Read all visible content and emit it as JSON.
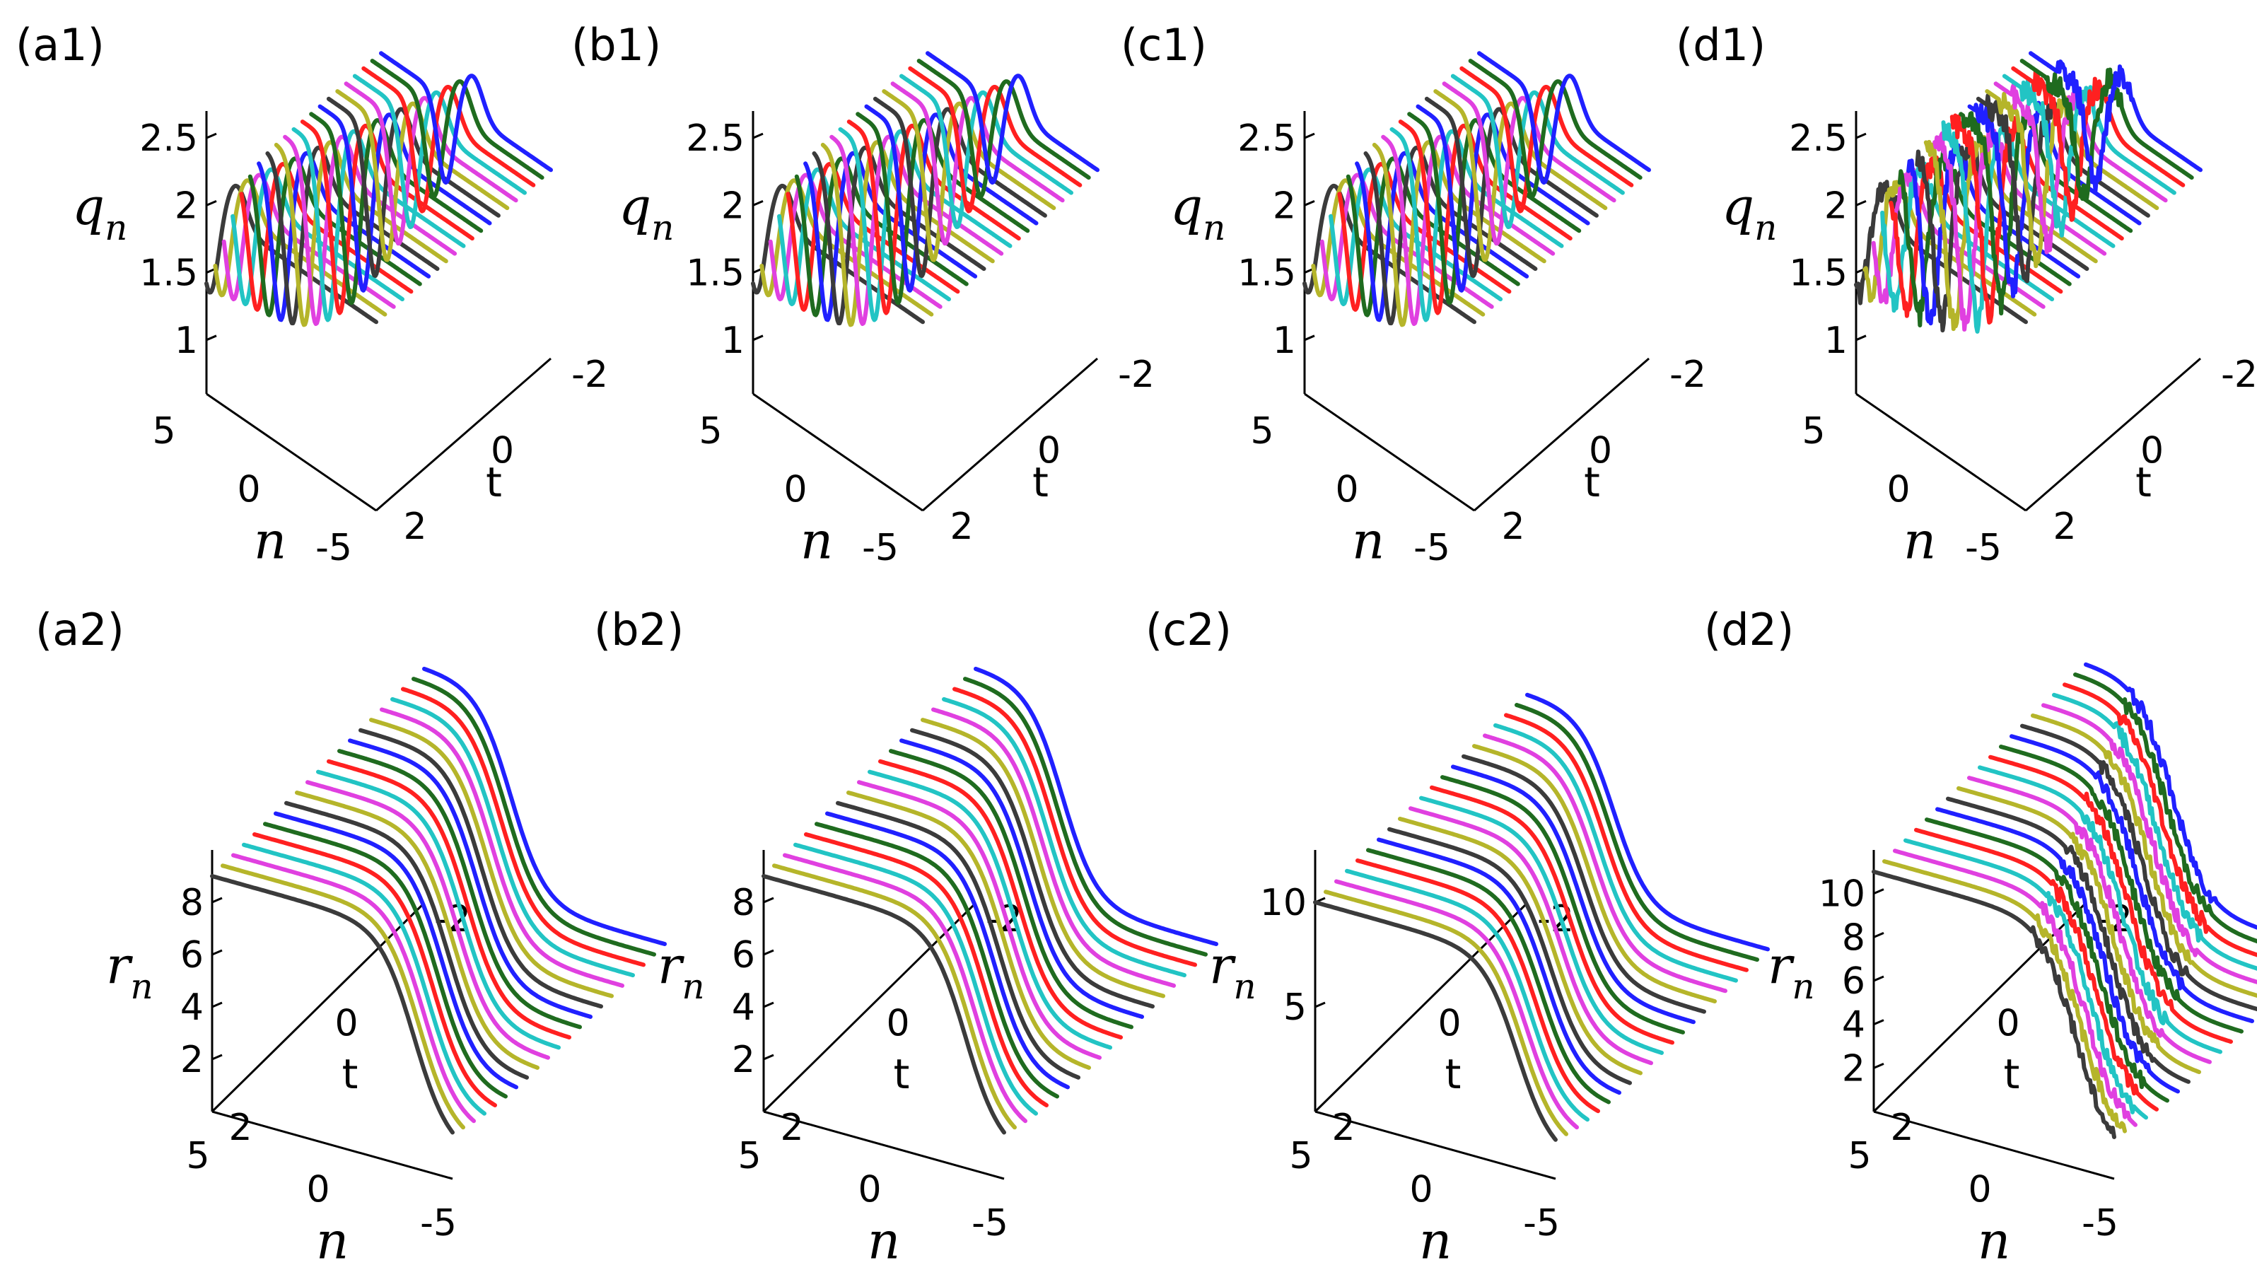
{
  "colors": [
    "#3b3b3b",
    "#b5b52a",
    "#e040e0",
    "#22c4c4",
    "#ff2020",
    "#1f6b1f",
    "#2020ff"
  ],
  "chart_data": [
    {
      "id": "a1",
      "label": "(a1)",
      "type": "line",
      "zlabel": "q",
      "zlabel_sub": "n",
      "xlabel": "n",
      "ylabel": "t",
      "ztick_labels": [
        "1",
        "1.5",
        "2",
        "2.5"
      ],
      "xtick_labels": [
        "-5",
        "0",
        "5"
      ],
      "ytick_labels": [
        "-2",
        "0",
        "2"
      ],
      "n_range": [
        -5,
        5
      ],
      "t_range": [
        -2,
        2
      ],
      "t_values": [
        2.0,
        1.8,
        1.6,
        1.4,
        1.2,
        1.0,
        0.8,
        0.6,
        0.4,
        0.2,
        0.0,
        -0.2,
        -0.4,
        -0.6,
        -0.8,
        -1.0,
        -1.2,
        -1.4,
        -1.6,
        -1.8,
        -2.0
      ],
      "baseline": 2,
      "feature": "dip",
      "min_value": 0.75,
      "peak_value": 2.3,
      "noise": 0
    },
    {
      "id": "b1",
      "label": "(b1)",
      "type": "line",
      "zlabel": "q",
      "zlabel_sub": "n",
      "xlabel": "n",
      "ylabel": "t",
      "ztick_labels": [
        "1",
        "1.5",
        "2",
        "2.5"
      ],
      "xtick_labels": [
        "-5",
        "0",
        "5"
      ],
      "ytick_labels": [
        "-2",
        "0",
        "2"
      ],
      "n_range": [
        -5,
        5
      ],
      "t_range": [
        -2,
        2
      ],
      "t_values": [
        2.0,
        1.8,
        1.6,
        1.4,
        1.2,
        1.0,
        0.8,
        0.6,
        0.4,
        0.2,
        0.0,
        -0.2,
        -0.4,
        -0.6,
        -0.8,
        -1.0,
        -1.2,
        -1.4,
        -1.6,
        -1.8,
        -2.0
      ],
      "baseline": 2,
      "feature": "dip",
      "min_value": 0.75,
      "peak_value": 2.3,
      "noise": 0
    },
    {
      "id": "c1",
      "label": "(c1)",
      "type": "line",
      "zlabel": "q",
      "zlabel_sub": "n",
      "xlabel": "n",
      "ylabel": "t",
      "ztick_labels": [
        "1",
        "1.5",
        "2",
        "2.5"
      ],
      "xtick_labels": [
        "-5",
        "0",
        "5"
      ],
      "ytick_labels": [
        "-2",
        "0",
        "2"
      ],
      "n_range": [
        -5,
        5
      ],
      "t_range": [
        -2,
        2
      ],
      "t_values": [
        2.0,
        1.8,
        1.6,
        1.4,
        1.2,
        1.0,
        0.8,
        0.6,
        0.4,
        0.2,
        0.0,
        -0.2,
        -0.4,
        -0.6,
        -0.8,
        -1.0,
        -1.2,
        -1.4,
        -1.6,
        -1.8,
        -2.0
      ],
      "baseline": 2,
      "feature": "dip",
      "min_value": 0.75,
      "peak_value": 2.3,
      "noise": 0
    },
    {
      "id": "d1",
      "label": "(d1)",
      "type": "line",
      "zlabel": "q",
      "zlabel_sub": "n",
      "xlabel": "n",
      "ylabel": "t",
      "ztick_labels": [
        "1",
        "1.5",
        "2",
        "2.5"
      ],
      "xtick_labels": [
        "-5",
        "0",
        "5"
      ],
      "ytick_labels": [
        "-2",
        "0",
        "2"
      ],
      "n_range": [
        -5,
        5
      ],
      "t_range": [
        -2,
        2
      ],
      "t_values": [
        2.0,
        1.8,
        1.6,
        1.4,
        1.2,
        1.0,
        0.8,
        0.6,
        0.4,
        0.2,
        0.0,
        -0.2,
        -0.4,
        -0.6,
        -0.8,
        -1.0,
        -1.2,
        -1.4,
        -1.6,
        -1.8,
        -2.0
      ],
      "baseline": 2,
      "feature": "dip",
      "min_value": 0.75,
      "peak_value": 2.3,
      "noise": 1
    },
    {
      "id": "a2",
      "label": "(a2)",
      "type": "line",
      "zlabel": "r",
      "zlabel_sub": "n",
      "xlabel": "n",
      "ylabel": "t",
      "ztick_labels": [
        "2",
        "4",
        "6",
        "8"
      ],
      "xtick_labels": [
        "5",
        "0",
        "-5"
      ],
      "ytick_labels": [
        "-2",
        "0",
        "2"
      ],
      "n_range": [
        5,
        -5
      ],
      "t_range": [
        -2,
        2
      ],
      "t_values": [
        2.0,
        1.8,
        1.6,
        1.4,
        1.2,
        1.0,
        0.8,
        0.6,
        0.4,
        0.2,
        0.0,
        -0.2,
        -0.4,
        -0.6,
        -0.8,
        -1.0,
        -1.2,
        -1.4,
        -1.6,
        -1.8,
        -2.0
      ],
      "feature": "step",
      "high_value": 9,
      "low_value": 1,
      "noise": 0
    },
    {
      "id": "b2",
      "label": "(b2)",
      "type": "line",
      "zlabel": "r",
      "zlabel_sub": "n",
      "xlabel": "n",
      "ylabel": "t",
      "ztick_labels": [
        "2",
        "4",
        "6",
        "8"
      ],
      "xtick_labels": [
        "5",
        "0",
        "-5"
      ],
      "ytick_labels": [
        "-2",
        "0",
        "2"
      ],
      "n_range": [
        5,
        -5
      ],
      "t_range": [
        -2,
        2
      ],
      "t_values": [
        2.0,
        1.8,
        1.6,
        1.4,
        1.2,
        1.0,
        0.8,
        0.6,
        0.4,
        0.2,
        0.0,
        -0.2,
        -0.4,
        -0.6,
        -0.8,
        -1.0,
        -1.2,
        -1.4,
        -1.6,
        -1.8,
        -2.0
      ],
      "feature": "step",
      "high_value": 9,
      "low_value": 1,
      "noise": 0
    },
    {
      "id": "c2",
      "label": "(c2)",
      "type": "line",
      "zlabel": "r",
      "zlabel_sub": "n",
      "xlabel": "n",
      "ylabel": "t",
      "ztick_labels": [
        "5",
        "10"
      ],
      "xtick_labels": [
        "5",
        "0",
        "-5"
      ],
      "ytick_labels": [
        "-2",
        "0",
        "2"
      ],
      "n_range": [
        5,
        -5
      ],
      "t_range": [
        -2,
        2
      ],
      "t_values": [
        2.0,
        1.8,
        1.6,
        1.4,
        1.2,
        1.0,
        0.8,
        0.6,
        0.4,
        0.2,
        0.0,
        -0.2,
        -0.4,
        -0.6,
        -0.8,
        -1.0,
        -1.2,
        -1.4,
        -1.6,
        -1.8,
        -2.0
      ],
      "feature": "step",
      "high_value": 10,
      "low_value": 1,
      "noise": 0
    },
    {
      "id": "d2",
      "label": "(d2)",
      "type": "line",
      "zlabel": "r",
      "zlabel_sub": "n",
      "xlabel": "n",
      "ylabel": "t",
      "ztick_labels": [
        "2",
        "4",
        "6",
        "8",
        "10"
      ],
      "xtick_labels": [
        "5",
        "0",
        "-5"
      ],
      "ytick_labels": [
        "-2",
        "0",
        "2"
      ],
      "n_range": [
        5,
        -5
      ],
      "t_range": [
        -2,
        2
      ],
      "t_values": [
        2.0,
        1.8,
        1.6,
        1.4,
        1.2,
        1.0,
        0.8,
        0.6,
        0.4,
        0.2,
        0.0,
        -0.2,
        -0.4,
        -0.6,
        -0.8,
        -1.0,
        -1.2,
        -1.4,
        -1.6,
        -1.8,
        -2.0
      ],
      "feature": "step",
      "high_value": 11,
      "low_value": 1,
      "noise": 1
    }
  ]
}
